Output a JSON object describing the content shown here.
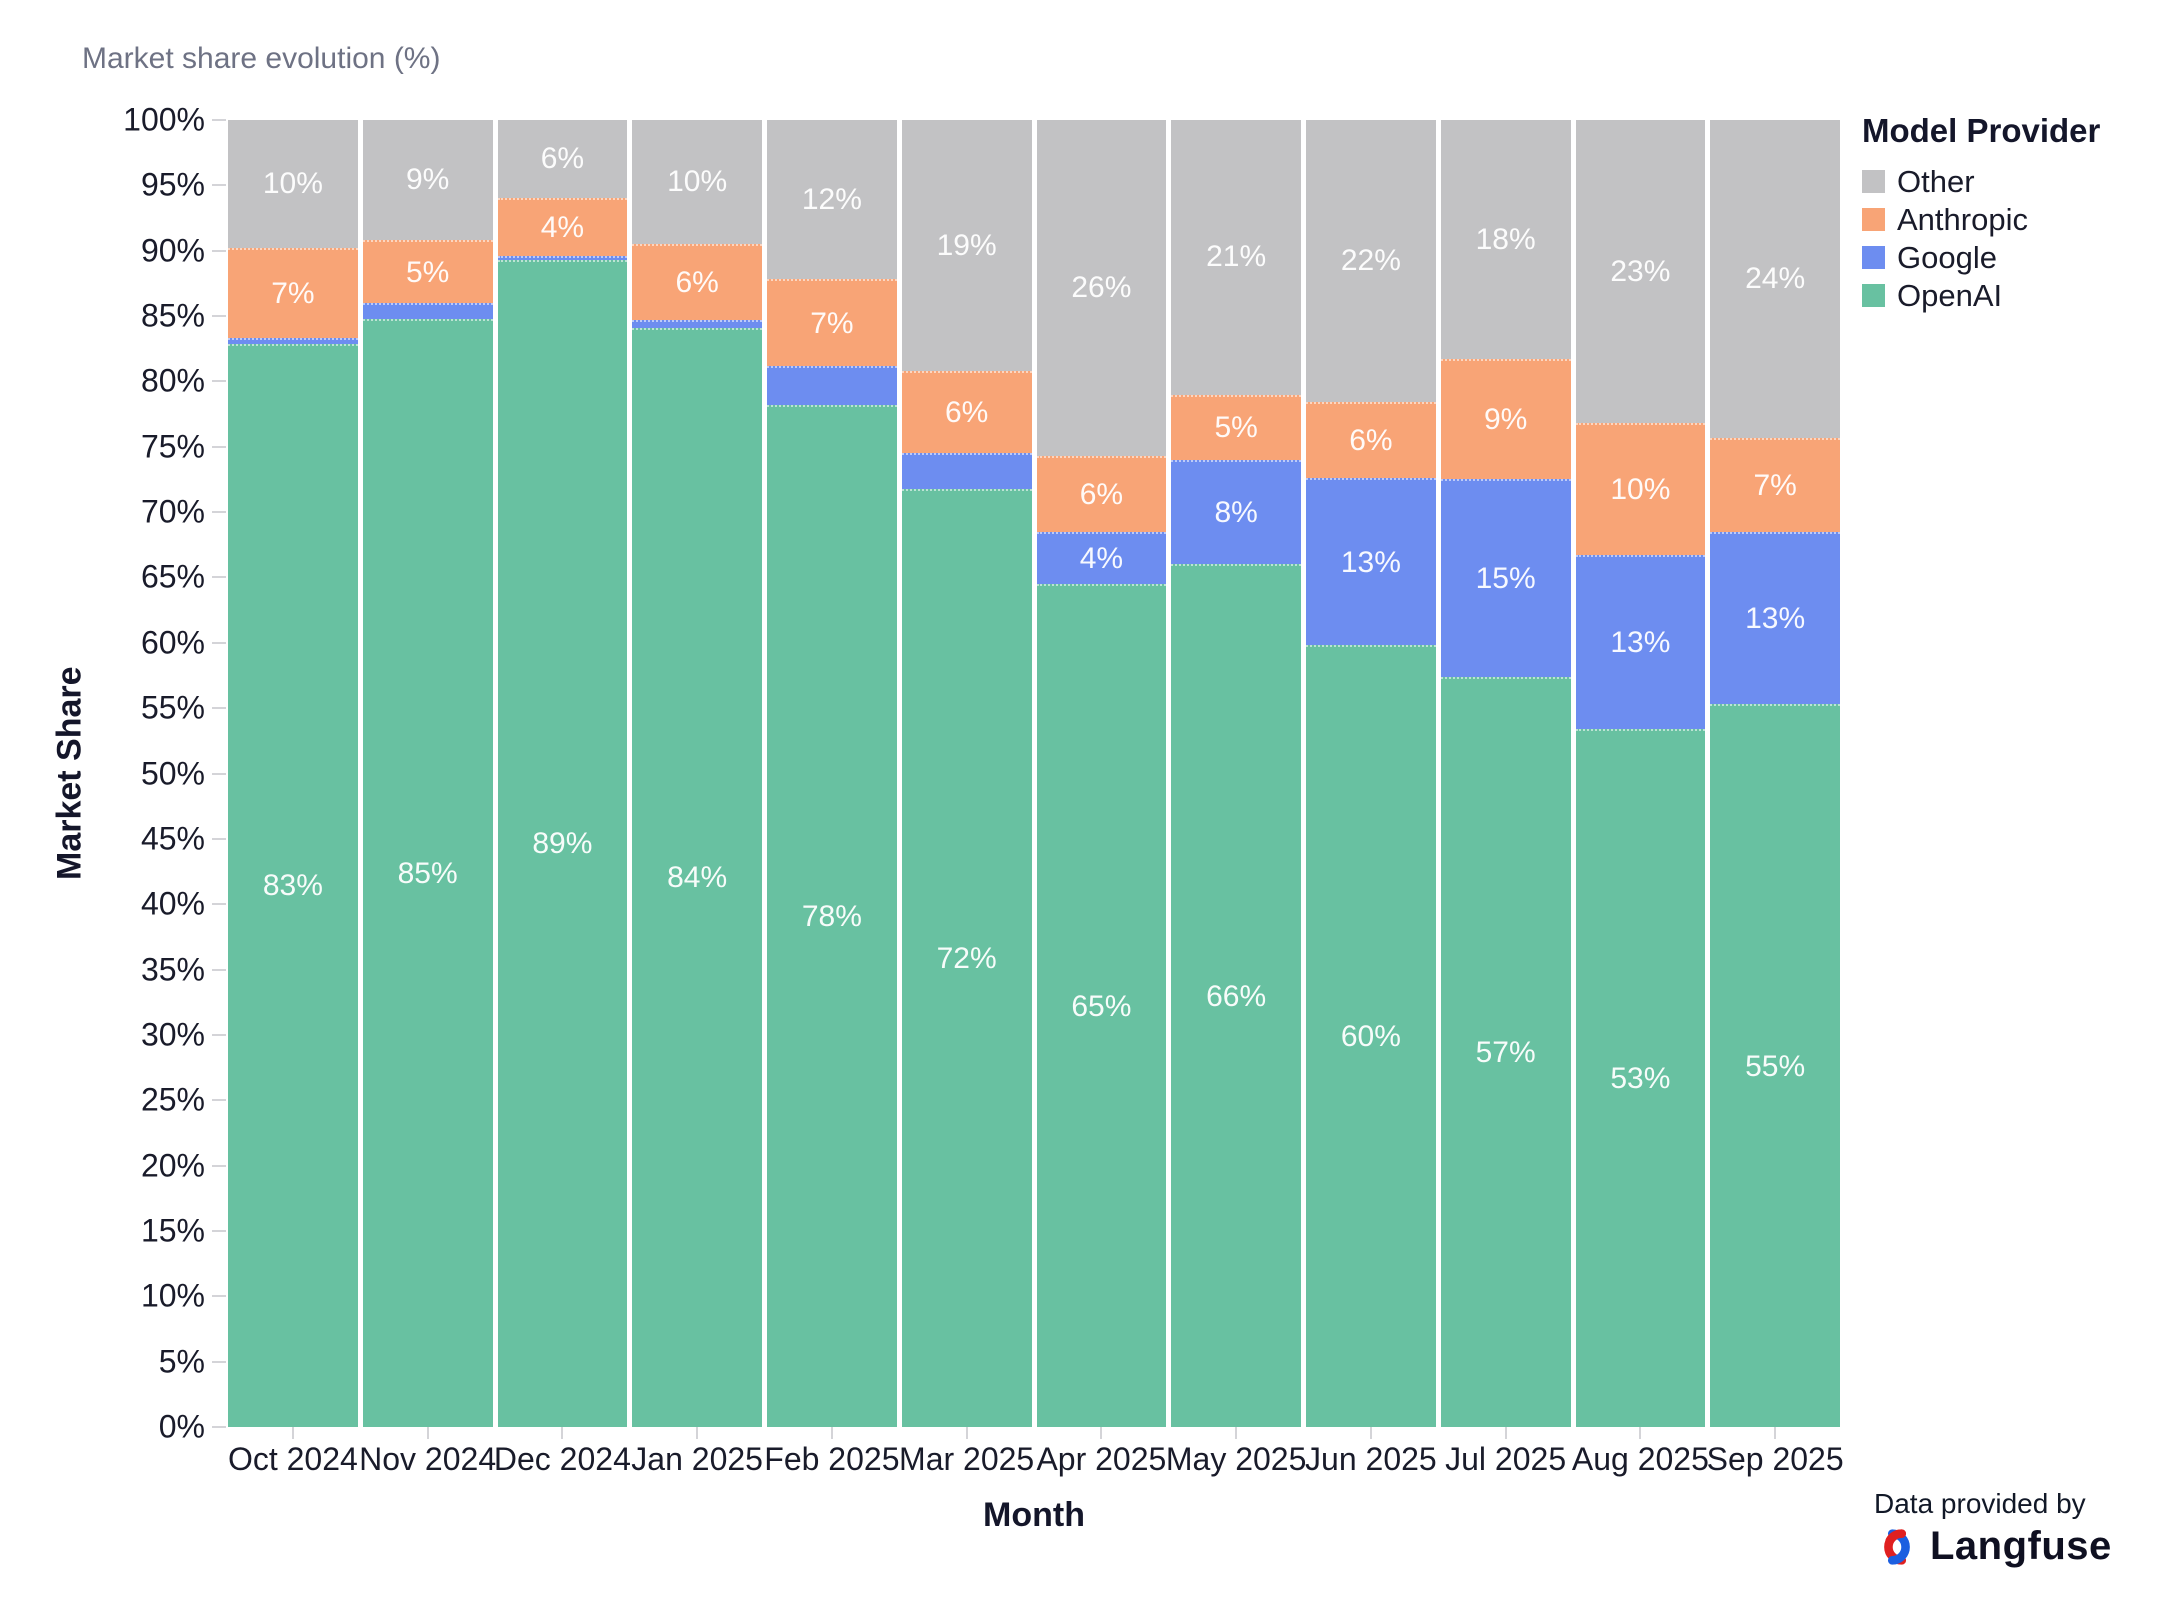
{
  "title": "Market share evolution (%)",
  "axes": {
    "y_title": "Market Share",
    "x_title": "Month",
    "y_ticks": [
      "100%",
      "95%",
      "90%",
      "85%",
      "80%",
      "75%",
      "70%",
      "65%",
      "60%",
      "55%",
      "50%",
      "45%",
      "40%",
      "35%",
      "30%",
      "25%",
      "20%",
      "15%",
      "10%",
      "5%",
      "0%"
    ]
  },
  "legend": {
    "title": "Model Provider",
    "items": [
      {
        "label": "Other",
        "color": "#c2c2c4"
      },
      {
        "label": "Anthropic",
        "color": "#f8a476"
      },
      {
        "label": "Google",
        "color": "#6d8df0"
      },
      {
        "label": "OpenAI",
        "color": "#68c1a1"
      }
    ]
  },
  "footer": {
    "prefix": "Data provided by",
    "brand": "Langfuse"
  },
  "colors": {
    "openai": "#68c1a1",
    "google": "#6d8df0",
    "anthropic": "#f8a476",
    "other": "#c2c2c4",
    "logo_red": "#e02020",
    "logo_blue": "#1c5fe0"
  },
  "chart_data": {
    "type": "bar",
    "stacked": true,
    "title": "Market share evolution (%)",
    "xlabel": "Month",
    "ylabel": "Market Share",
    "ylim": [
      0,
      100
    ],
    "y_tick_step": 5,
    "grid": false,
    "legend_position": "right",
    "categories": [
      "Oct 2024",
      "Nov 2024",
      "Dec 2024",
      "Jan 2025",
      "Feb 2025",
      "Mar 2025",
      "Apr 2025",
      "May 2025",
      "Jun 2025",
      "Jul 2025",
      "Aug 2025",
      "Sep 2025"
    ],
    "series": [
      {
        "name": "OpenAI",
        "color": "#68c1a1",
        "values": [
          82.9,
          84.8,
          89.3,
          84.1,
          78.2,
          71.8,
          64.5,
          66.0,
          59.8,
          57.4,
          53.4,
          55.3
        ],
        "labels": [
          "83%",
          "85%",
          "89%",
          "84%",
          "78%",
          "72%",
          "65%",
          "66%",
          "60%",
          "57%",
          "53%",
          "55%"
        ]
      },
      {
        "name": "Google",
        "color": "#6d8df0",
        "values": [
          0.4,
          1.2,
          0.3,
          0.6,
          3.0,
          2.7,
          4.0,
          8.0,
          12.8,
          15.1,
          13.3,
          13.2
        ],
        "labels": [
          "",
          "",
          "",
          "",
          "",
          "",
          "4%",
          "8%",
          "13%",
          "15%",
          "13%",
          "13%"
        ]
      },
      {
        "name": "Anthropic",
        "color": "#f8a476",
        "values": [
          6.9,
          4.8,
          4.4,
          5.8,
          6.6,
          6.3,
          5.8,
          5.0,
          5.8,
          9.2,
          10.1,
          7.2
        ],
        "labels": [
          "7%",
          "5%",
          "4%",
          "6%",
          "7%",
          "6%",
          "6%",
          "5%",
          "6%",
          "9%",
          "10%",
          "7%"
        ]
      },
      {
        "name": "Other",
        "color": "#c2c2c4",
        "values": [
          9.8,
          9.2,
          6.0,
          9.5,
          12.2,
          19.2,
          25.7,
          21.0,
          21.6,
          18.3,
          23.2,
          24.3
        ],
        "labels": [
          "10%",
          "9%",
          "6%",
          "10%",
          "12%",
          "19%",
          "26%",
          "21%",
          "22%",
          "18%",
          "23%",
          "24%"
        ]
      }
    ]
  }
}
